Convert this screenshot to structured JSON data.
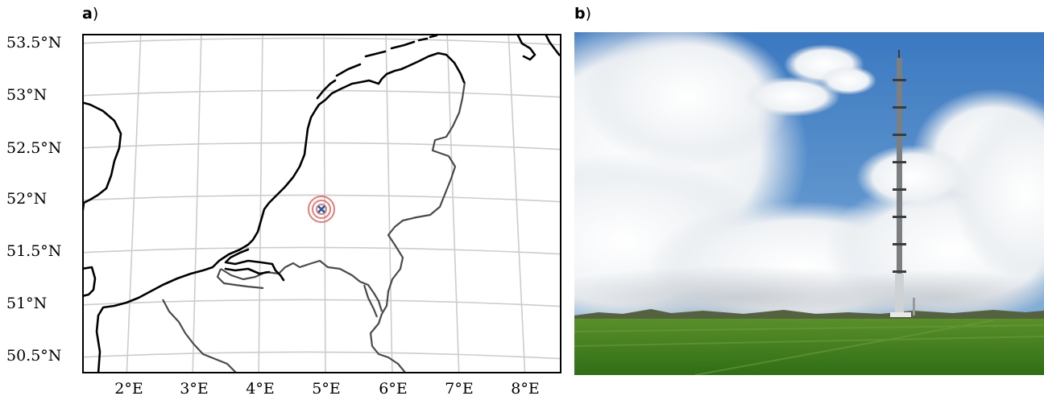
{
  "panel_a": {
    "label_letter": "a",
    "label_paren": ")",
    "lat_labels": [
      "53.5°N",
      "53°N",
      "52.5°N",
      "52°N",
      "51.5°N",
      "51°N",
      "50.5°N"
    ],
    "lon_labels": [
      "2°E",
      "3°E",
      "4°E",
      "5°E",
      "6°E",
      "7°E",
      "8°E"
    ]
  },
  "panel_b": {
    "label_letter": "b",
    "label_paren": ")"
  },
  "colors": {
    "coastline": "#000000",
    "border": "#4a4a4a",
    "graticule": "#cccccc",
    "site_marker": "#d9534f",
    "site_center": "#1f5fa8",
    "sky": "#4a86c5",
    "grass": "#3f7f1e"
  }
}
